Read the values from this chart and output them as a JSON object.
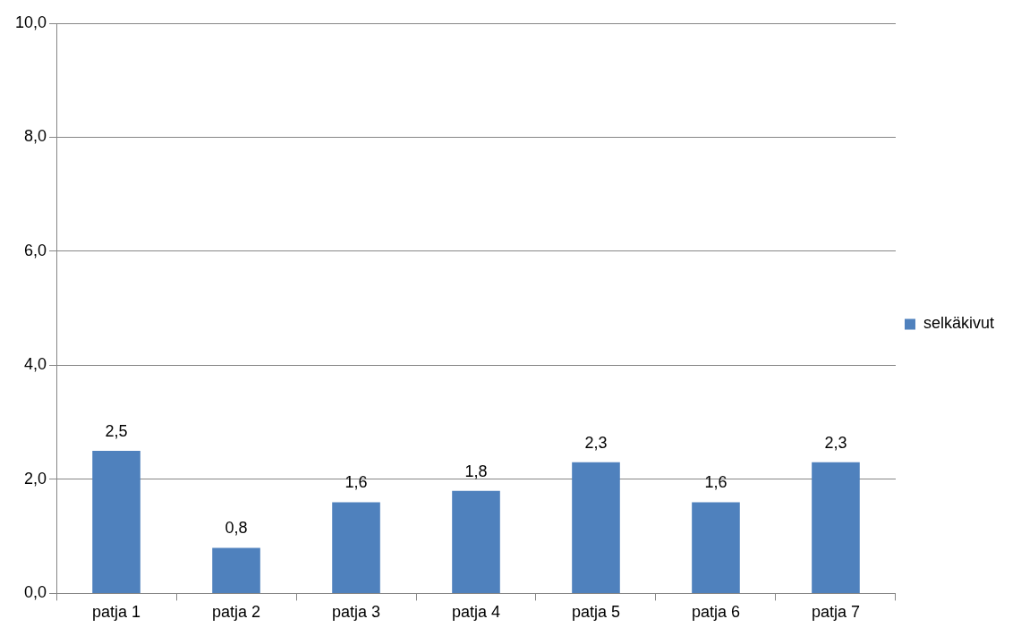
{
  "chart_data": {
    "type": "bar",
    "categories": [
      "patja 1",
      "patja 2",
      "patja 3",
      "patja 4",
      "patja 5",
      "patja 6",
      "patja 7"
    ],
    "series": [
      {
        "name": "selkäkivut",
        "color": "#4f81bd",
        "values": [
          2.5,
          0.8,
          1.6,
          1.8,
          2.3,
          1.6,
          2.3
        ],
        "value_labels": [
          "2,5",
          "0,8",
          "1,6",
          "1,8",
          "2,3",
          "1,6",
          "2,3"
        ]
      }
    ],
    "ylim": [
      0,
      10
    ],
    "yticks": [
      {
        "value": 0,
        "label": "0,0"
      },
      {
        "value": 2,
        "label": "2,0"
      },
      {
        "value": 4,
        "label": "4,0"
      },
      {
        "value": 6,
        "label": "6,0"
      },
      {
        "value": 8,
        "label": "8,0"
      },
      {
        "value": 10,
        "label": "10,0"
      }
    ],
    "grid": "y",
    "legend": "right"
  }
}
